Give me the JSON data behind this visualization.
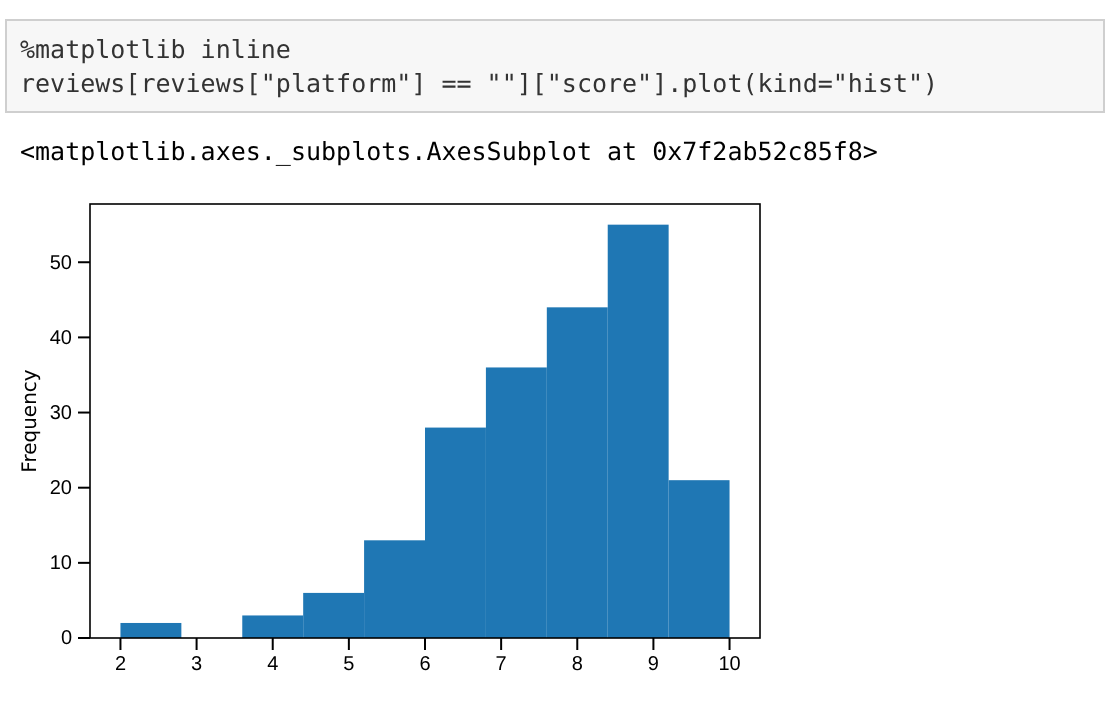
{
  "chart_data": {
    "type": "histogram",
    "ylabel": "Frequency",
    "annotations": [
      "%matplotlib inline",
      "reviews[reviews[\"platform\"] == \"\"][\"score\"].plot(kind=\"hist\")",
      "<matplotlib.axes._subplots.AxesSubplot at 0x7f2ab52c85f8>"
    ],
    "bins": [
      2,
      2.8,
      3.6,
      4.4,
      5.2,
      6,
      6.8,
      7.6,
      8.4,
      9.2,
      10
    ],
    "values": [
      2,
      0,
      3,
      6,
      13,
      28,
      36,
      44,
      55,
      21
    ],
    "color": "#1f77b4",
    "xlim": [
      1.6,
      10.4
    ],
    "xticks": [
      2,
      3,
      4,
      5,
      6,
      7,
      8,
      9,
      10
    ],
    "ylim": [
      0,
      57.75
    ],
    "yticks": [
      0,
      10,
      20,
      30,
      40,
      50
    ]
  }
}
